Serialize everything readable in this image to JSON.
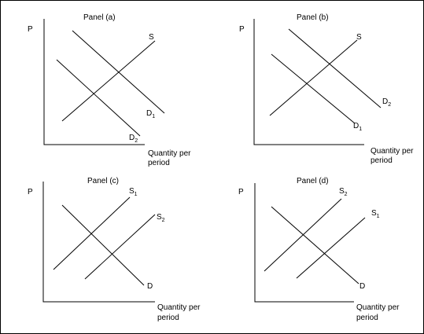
{
  "axes": {
    "p_label": "P",
    "q_label_line1": "Quantity per",
    "q_label_line2": "period"
  },
  "panels": [
    {
      "title": "Panel (a)",
      "supply": [
        {
          "base": "S",
          "sub": ""
        }
      ],
      "demand": [
        {
          "base": "D",
          "sub": "1"
        },
        {
          "base": "D",
          "sub": "2"
        }
      ]
    },
    {
      "title": "Panel (b)",
      "supply": [
        {
          "base": "S",
          "sub": ""
        }
      ],
      "demand": [
        {
          "base": "D",
          "sub": "2"
        },
        {
          "base": "D",
          "sub": "1"
        }
      ]
    },
    {
      "title": "Panel (c)",
      "supply": [
        {
          "base": "S",
          "sub": "1"
        },
        {
          "base": "S",
          "sub": "2"
        }
      ],
      "demand": [
        {
          "base": "D",
          "sub": ""
        }
      ]
    },
    {
      "title": "Panel (d)",
      "supply": [
        {
          "base": "S",
          "sub": "2"
        },
        {
          "base": "S",
          "sub": "1"
        }
      ],
      "demand": [
        {
          "base": "D",
          "sub": ""
        }
      ]
    }
  ]
}
